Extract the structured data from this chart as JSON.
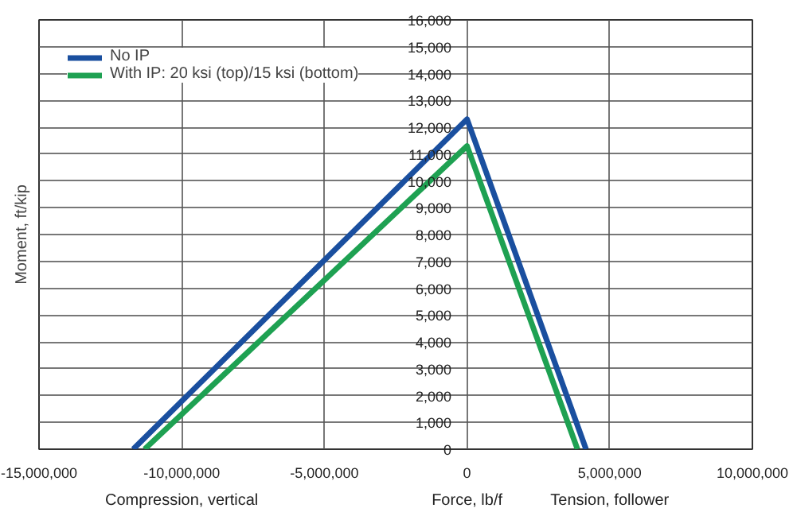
{
  "chart_data": {
    "type": "line",
    "xlabel": "Force, lb/f",
    "ylabel": "Moment, ft/kip",
    "annotations": [
      "Compression, vertical",
      "Tension, follower"
    ],
    "series": [
      {
        "name": "No IP",
        "color": "#1a4f9f",
        "x": [
          -11700000,
          0,
          4170000
        ],
        "values": [
          0,
          12300,
          0
        ]
      },
      {
        "name": "With IP: 20 ksi (top)/15 ksi (bottom)",
        "color": "#1ea152",
        "x": [
          -11300000,
          0,
          3870000
        ],
        "values": [
          0,
          11300,
          0
        ]
      }
    ],
    "xlim": [
      -15000000,
      10000000
    ],
    "xticks": [
      {
        "value": -15000000,
        "label": "-15,000,000"
      },
      {
        "value": -10000000,
        "label": "-10,000,000"
      },
      {
        "value": -5000000,
        "label": "-5,000,000"
      },
      0,
      {
        "value": 5000000,
        "label": "5,000,000"
      },
      {
        "value": 10000000,
        "label": "10,000,000"
      }
    ],
    "ylim": [
      0,
      16000
    ],
    "yticks": [
      0,
      {
        "value": 1000,
        "label": "1,000"
      },
      {
        "value": 2000,
        "label": "2,000"
      },
      {
        "value": 3000,
        "label": "3,000"
      },
      {
        "value": 4000,
        "label": "4,000"
      },
      {
        "value": 5000,
        "label": "5,000"
      },
      {
        "value": 6000,
        "label": "6,000"
      },
      {
        "value": 7000,
        "label": "7,000"
      },
      {
        "value": 8000,
        "label": "8,000"
      },
      {
        "value": 9000,
        "label": "9,000"
      },
      {
        "value": 10000,
        "label": "10,000"
      },
      {
        "value": 11000,
        "label": "11,000"
      },
      {
        "value": 12000,
        "label": "12,000"
      },
      {
        "value": 13000,
        "label": "13,000"
      },
      {
        "value": 14000,
        "label": "14,000"
      },
      {
        "value": 15000,
        "label": "15,000"
      },
      {
        "value": 16000,
        "label": "16,000"
      }
    ],
    "grid": true,
    "legend": "top left",
    "marker": "none",
    "line_style": "solid"
  }
}
